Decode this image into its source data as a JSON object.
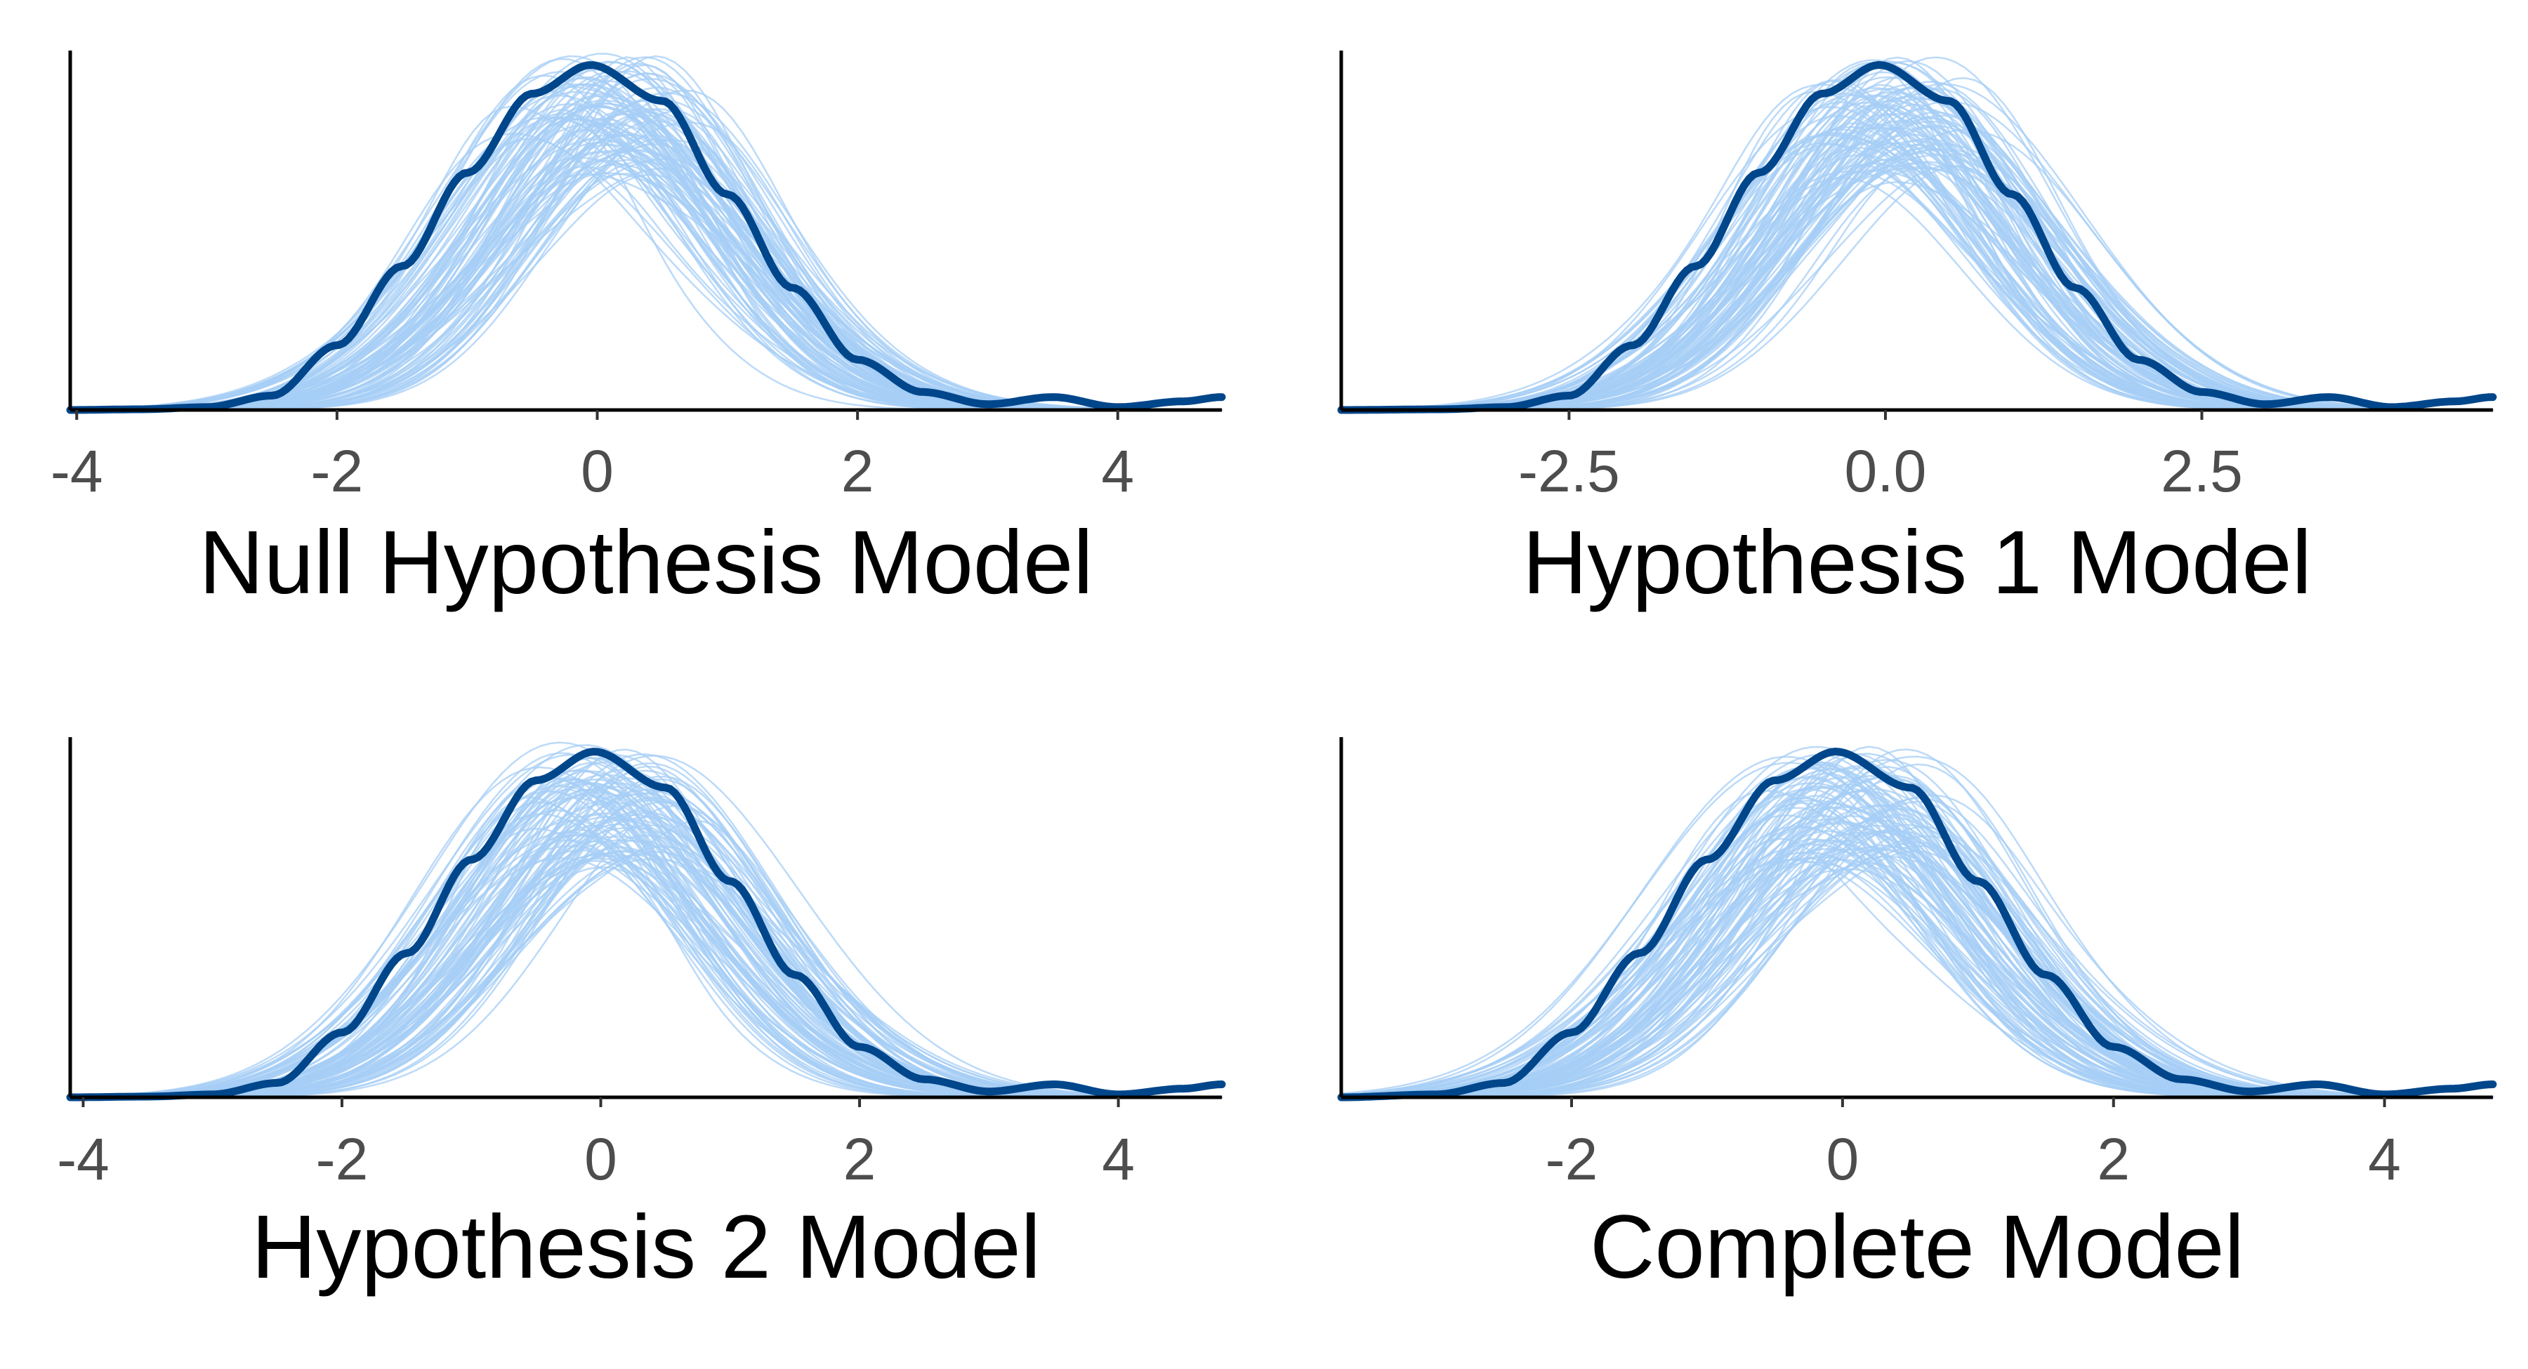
{
  "chart_data": [
    {
      "type": "line",
      "xlabel": "Null Hypothesis Model",
      "xticks": [
        -4,
        -2,
        0,
        2,
        4
      ],
      "tick_labels": [
        "-4",
        "-2",
        "0",
        "2",
        "4"
      ],
      "xlim": [
        -4.05,
        4.8
      ],
      "y_axis_ticks": "none",
      "grid": false,
      "observed_density": {
        "x": [
          -4.05,
          -3.5,
          -3.0,
          -2.5,
          -2.0,
          -1.5,
          -1.0,
          -0.5,
          -0.05,
          0.5,
          1.0,
          1.5,
          2.0,
          2.5,
          3.0,
          3.5,
          4.0,
          4.5,
          4.8
        ],
        "density": [
          0.0,
          0.001,
          0.004,
          0.02,
          0.09,
          0.2,
          0.33,
          0.44,
          0.48,
          0.43,
          0.3,
          0.17,
          0.07,
          0.025,
          0.008,
          0.018,
          0.004,
          0.012,
          0.018
        ]
      },
      "replicated_density": {
        "count": 100,
        "peak_location_range": [
          -0.4,
          0.5
        ],
        "peak_density_range": [
          0.33,
          0.5
        ],
        "spread_sd_range": [
          0.85,
          1.15
        ]
      }
    },
    {
      "type": "line",
      "xlabel": "Hypothesis 1 Model",
      "xticks": [
        -2.5,
        0.0,
        2.5
      ],
      "tick_labels": [
        "-2.5",
        "0.0",
        "2.5"
      ],
      "xlim": [
        -4.3,
        4.8
      ],
      "y_axis_ticks": "none",
      "grid": false,
      "observed_density": {
        "x": [
          -4.3,
          -3.5,
          -3.0,
          -2.5,
          -2.0,
          -1.5,
          -1.0,
          -0.5,
          -0.05,
          0.5,
          1.0,
          1.5,
          2.0,
          2.5,
          3.0,
          3.5,
          4.0,
          4.5,
          4.8
        ],
        "density": [
          0.0,
          0.001,
          0.004,
          0.02,
          0.09,
          0.2,
          0.33,
          0.44,
          0.48,
          0.43,
          0.3,
          0.17,
          0.07,
          0.025,
          0.008,
          0.018,
          0.004,
          0.012,
          0.018
        ]
      },
      "replicated_density": {
        "count": 100,
        "peak_location_range": [
          -0.4,
          0.5
        ],
        "peak_density_range": [
          0.33,
          0.5
        ],
        "spread_sd_range": [
          0.85,
          1.15
        ]
      }
    },
    {
      "type": "line",
      "xlabel": "Hypothesis 2 Model",
      "xticks": [
        -4,
        -2,
        0,
        2,
        4
      ],
      "tick_labels": [
        "-4",
        "-2",
        "0",
        "2",
        "4"
      ],
      "xlim": [
        -4.1,
        4.8
      ],
      "y_axis_ticks": "none",
      "grid": false,
      "observed_density": {
        "x": [
          -4.1,
          -3.5,
          -3.0,
          -2.5,
          -2.0,
          -1.5,
          -1.0,
          -0.5,
          -0.05,
          0.5,
          1.0,
          1.5,
          2.0,
          2.5,
          3.0,
          3.5,
          4.0,
          4.5,
          4.8
        ],
        "density": [
          0.0,
          0.001,
          0.004,
          0.02,
          0.09,
          0.2,
          0.33,
          0.44,
          0.48,
          0.43,
          0.3,
          0.17,
          0.07,
          0.025,
          0.008,
          0.018,
          0.004,
          0.012,
          0.018
        ]
      },
      "replicated_density": {
        "count": 100,
        "peak_location_range": [
          -0.4,
          0.5
        ],
        "peak_density_range": [
          0.33,
          0.5
        ],
        "spread_sd_range": [
          0.85,
          1.15
        ]
      }
    },
    {
      "type": "line",
      "xlabel": "Complete Model",
      "xticks": [
        -2,
        0,
        2,
        4
      ],
      "tick_labels": [
        "-2",
        "0",
        "2",
        "4"
      ],
      "xlim": [
        -3.7,
        4.8
      ],
      "y_axis_ticks": "none",
      "grid": false,
      "observed_density": {
        "x": [
          -3.7,
          -3.0,
          -2.5,
          -2.0,
          -1.5,
          -1.0,
          -0.5,
          -0.05,
          0.5,
          1.0,
          1.5,
          2.0,
          2.5,
          3.0,
          3.5,
          4.0,
          4.5,
          4.8
        ],
        "density": [
          0.0,
          0.004,
          0.02,
          0.09,
          0.2,
          0.33,
          0.44,
          0.48,
          0.43,
          0.3,
          0.17,
          0.07,
          0.025,
          0.008,
          0.018,
          0.004,
          0.012,
          0.018
        ]
      },
      "replicated_density": {
        "count": 100,
        "peak_location_range": [
          -0.4,
          0.5
        ],
        "peak_density_range": [
          0.33,
          0.5
        ],
        "spread_sd_range": [
          0.85,
          1.15
        ]
      }
    }
  ],
  "colors": {
    "observed": "#00468B",
    "replicated": "#A6CEF5",
    "axis": "#000000",
    "tick_text": "#4D4D4D",
    "title_text": "#000000",
    "background": "#FFFFFF"
  }
}
